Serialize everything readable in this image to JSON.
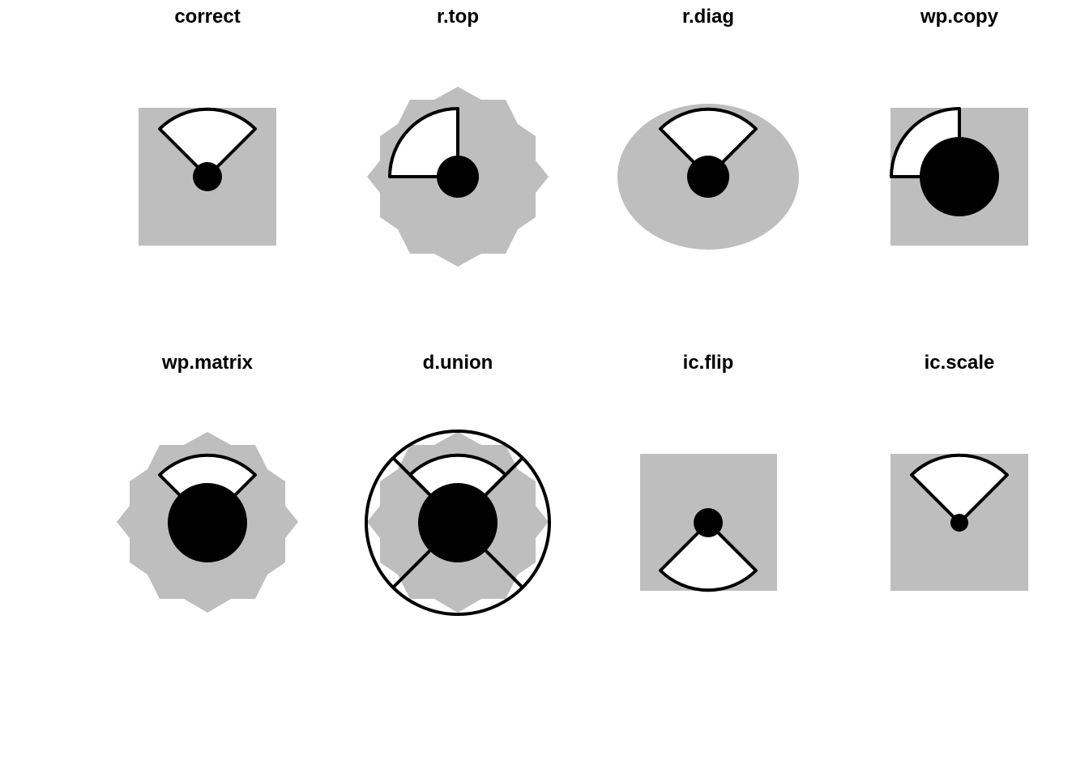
{
  "colors": {
    "background": "#ffffff",
    "shape_fill": "#bebebe",
    "sector_fill": "#ffffff",
    "stroke": "#000000",
    "dot": "#000000"
  },
  "panels": [
    {
      "id": "correct",
      "title": "correct",
      "background_shape": "square",
      "sector": "fan-up",
      "dot": "small"
    },
    {
      "id": "r-top",
      "title": "r.top",
      "background_shape": "star",
      "sector": "quarter-left",
      "dot": "medium"
    },
    {
      "id": "r-diag",
      "title": "r.diag",
      "background_shape": "ellipse",
      "sector": "fan-up",
      "dot": "medium"
    },
    {
      "id": "wp-copy",
      "title": "wp.copy",
      "background_shape": "square",
      "sector": "quarter-left",
      "dot": "large"
    },
    {
      "id": "wp-matrix",
      "title": "wp.matrix",
      "background_shape": "star",
      "sector": "fan-up",
      "dot": "large"
    },
    {
      "id": "d-union",
      "title": "d.union",
      "background_shape": "star",
      "sector": "fan-up",
      "dot": "large",
      "overlay": "circle-x"
    },
    {
      "id": "ic-flip",
      "title": "ic.flip",
      "background_shape": "square",
      "sector": "fan-down",
      "dot": "medium"
    },
    {
      "id": "ic-scale",
      "title": "ic.scale",
      "background_shape": "square",
      "sector": "fan-up",
      "dot": "tiny"
    }
  ]
}
